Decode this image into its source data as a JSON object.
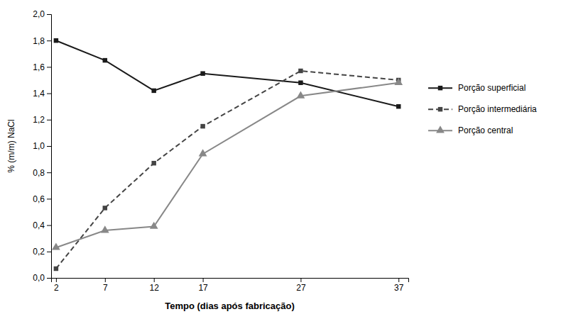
{
  "chart_data": {
    "type": "line",
    "x": [
      2,
      7,
      12,
      17,
      27,
      37
    ],
    "series": [
      {
        "name": "Porção superficial",
        "color": "#1a1a1a",
        "marker": "square",
        "line_style": "solid",
        "values": [
          1.8,
          1.65,
          1.42,
          1.55,
          1.48,
          1.3
        ]
      },
      {
        "name": "Porção intermediária",
        "color": "#444444",
        "marker": "square",
        "line_style": "dashed",
        "values": [
          0.07,
          0.53,
          0.87,
          1.15,
          1.57,
          1.5
        ]
      },
      {
        "name": "Porção central",
        "color": "#888888",
        "marker": "triangle",
        "line_style": "solid",
        "values": [
          0.23,
          0.36,
          0.39,
          0.94,
          1.38,
          1.48
        ]
      }
    ],
    "xlabel": "Tempo (dias após fabricação)",
    "ylabel": "% (m/m) NaCl",
    "xlim": [
      1.5,
      38
    ],
    "ylim": [
      0.0,
      2.0
    ],
    "xticks": [
      2,
      7,
      12,
      17,
      27,
      37
    ],
    "yticks": [
      {
        "value": 0.0,
        "label": "0,0"
      },
      {
        "value": 0.2,
        "label": "0,2"
      },
      {
        "value": 0.4,
        "label": "0,4"
      },
      {
        "value": 0.6,
        "label": "0,6"
      },
      {
        "value": 0.8,
        "label": "0,8"
      },
      {
        "value": 1.0,
        "label": "1,0"
      },
      {
        "value": 1.2,
        "label": "1,2"
      },
      {
        "value": 1.4,
        "label": "1,4"
      },
      {
        "value": 1.6,
        "label": "1,6"
      },
      {
        "value": 1.8,
        "label": "1,8"
      },
      {
        "value": 2.0,
        "label": "2,0"
      }
    ],
    "grid": false,
    "legend": "right"
  }
}
